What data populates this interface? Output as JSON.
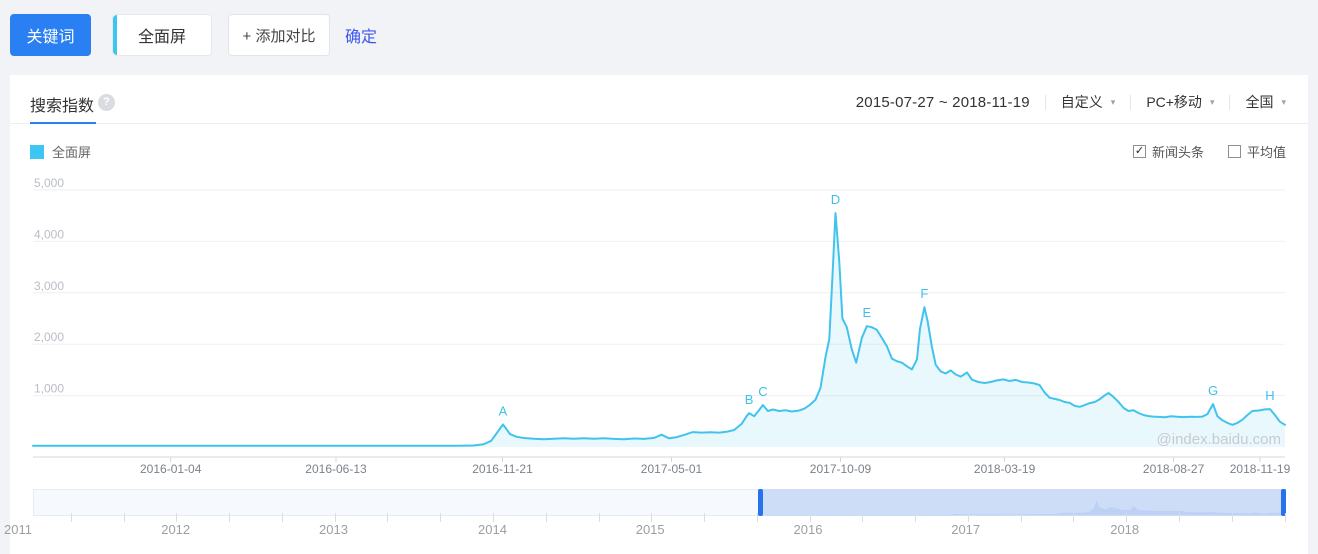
{
  "topbar": {
    "keyword_button": "关键词",
    "keyword_card": "全面屏",
    "add_compare_button": "+ 添加对比",
    "confirm_link": "确定"
  },
  "panel": {
    "tab": "搜索指数",
    "help_icon": "question-mark",
    "date_range": "2015-07-27 ~ 2018-11-19",
    "filters": [
      {
        "label": "自定义",
        "name": "date-mode-dropdown"
      },
      {
        "label": "PC+移动",
        "name": "platform-dropdown"
      },
      {
        "label": "全国",
        "name": "region-dropdown"
      }
    ],
    "legend": {
      "series_label": "全面屏",
      "swatch_color": "#3ec6f2"
    },
    "toggles": [
      {
        "label": "新闻头条",
        "checked": true
      },
      {
        "label": "平均值",
        "checked": false
      }
    ]
  },
  "chart_data": {
    "type": "area",
    "title": "搜索指数",
    "series_name": "全面屏",
    "line_color": "#41c3ee",
    "fill_color": "rgba(62,198,242,0.12)",
    "ylim": [
      0,
      5000
    ],
    "y_ticks": [
      1000,
      2000,
      3000,
      4000,
      5000
    ],
    "x_ticks": [
      {
        "label": "2016-01-04",
        "f": 0.11
      },
      {
        "label": "2016-06-13",
        "f": 0.242
      },
      {
        "label": "2016-11-21",
        "f": 0.375
      },
      {
        "label": "2017-05-01",
        "f": 0.51
      },
      {
        "label": "2017-10-09",
        "f": 0.645
      },
      {
        "label": "2018-03-19",
        "f": 0.776
      },
      {
        "label": "2018-08-27",
        "f": 0.911
      },
      {
        "label": "2018-11-19",
        "f": 0.98
      }
    ],
    "annotations": [
      {
        "label": "A",
        "f": 0.3754,
        "value": 440
      },
      {
        "label": "B",
        "f": 0.572,
        "value": 660
      },
      {
        "label": "C",
        "f": 0.583,
        "value": 815
      },
      {
        "label": "D",
        "f": 0.641,
        "value": 4550
      },
      {
        "label": "E",
        "f": 0.666,
        "value": 2350
      },
      {
        "label": "F",
        "f": 0.712,
        "value": 2720
      },
      {
        "label": "G",
        "f": 0.9425,
        "value": 835
      },
      {
        "label": "H",
        "f": 0.988,
        "value": 738
      }
    ],
    "watermark": "@index.baidu.com",
    "points": [
      [
        0.0,
        25
      ],
      [
        0.02,
        25
      ],
      [
        0.04,
        25
      ],
      [
        0.06,
        25
      ],
      [
        0.08,
        25
      ],
      [
        0.1,
        25
      ],
      [
        0.12,
        25
      ],
      [
        0.14,
        25
      ],
      [
        0.16,
        25
      ],
      [
        0.18,
        25
      ],
      [
        0.2,
        25
      ],
      [
        0.22,
        25
      ],
      [
        0.24,
        25
      ],
      [
        0.26,
        25
      ],
      [
        0.28,
        25
      ],
      [
        0.3,
        25
      ],
      [
        0.32,
        25
      ],
      [
        0.34,
        25
      ],
      [
        0.352,
        30
      ],
      [
        0.36,
        55
      ],
      [
        0.366,
        120
      ],
      [
        0.3754,
        440
      ],
      [
        0.381,
        250
      ],
      [
        0.386,
        200
      ],
      [
        0.392,
        175
      ],
      [
        0.4,
        160
      ],
      [
        0.408,
        150
      ],
      [
        0.416,
        162
      ],
      [
        0.424,
        172
      ],
      [
        0.432,
        160
      ],
      [
        0.44,
        172
      ],
      [
        0.448,
        162
      ],
      [
        0.456,
        172
      ],
      [
        0.464,
        158
      ],
      [
        0.472,
        150
      ],
      [
        0.48,
        165
      ],
      [
        0.488,
        158
      ],
      [
        0.496,
        178
      ],
      [
        0.502,
        240
      ],
      [
        0.508,
        170
      ],
      [
        0.514,
        190
      ],
      [
        0.52,
        235
      ],
      [
        0.527,
        290
      ],
      [
        0.534,
        280
      ],
      [
        0.541,
        288
      ],
      [
        0.548,
        280
      ],
      [
        0.554,
        295
      ],
      [
        0.56,
        330
      ],
      [
        0.566,
        450
      ],
      [
        0.57,
        600
      ],
      [
        0.572,
        660
      ],
      [
        0.576,
        600
      ],
      [
        0.58,
        720
      ],
      [
        0.583,
        815
      ],
      [
        0.587,
        700
      ],
      [
        0.591,
        730
      ],
      [
        0.596,
        700
      ],
      [
        0.601,
        715
      ],
      [
        0.606,
        690
      ],
      [
        0.611,
        705
      ],
      [
        0.616,
        745
      ],
      [
        0.62,
        810
      ],
      [
        0.625,
        920
      ],
      [
        0.629,
        1150
      ],
      [
        0.633,
        1750
      ],
      [
        0.636,
        2100
      ],
      [
        0.6385,
        3300
      ],
      [
        0.641,
        4550
      ],
      [
        0.644,
        3600
      ],
      [
        0.6465,
        2500
      ],
      [
        0.65,
        2330
      ],
      [
        0.654,
        1900
      ],
      [
        0.6575,
        1640
      ],
      [
        0.662,
        2120
      ],
      [
        0.666,
        2350
      ],
      [
        0.67,
        2330
      ],
      [
        0.674,
        2280
      ],
      [
        0.678,
        2120
      ],
      [
        0.682,
        1960
      ],
      [
        0.686,
        1720
      ],
      [
        0.69,
        1670
      ],
      [
        0.694,
        1640
      ],
      [
        0.698,
        1570
      ],
      [
        0.702,
        1510
      ],
      [
        0.706,
        1700
      ],
      [
        0.7085,
        2300
      ],
      [
        0.712,
        2720
      ],
      [
        0.7145,
        2450
      ],
      [
        0.718,
        1950
      ],
      [
        0.721,
        1600
      ],
      [
        0.725,
        1470
      ],
      [
        0.729,
        1430
      ],
      [
        0.733,
        1490
      ],
      [
        0.737,
        1410
      ],
      [
        0.741,
        1370
      ],
      [
        0.746,
        1450
      ],
      [
        0.75,
        1310
      ],
      [
        0.755,
        1265
      ],
      [
        0.76,
        1245
      ],
      [
        0.765,
        1265
      ],
      [
        0.77,
        1295
      ],
      [
        0.775,
        1315
      ],
      [
        0.78,
        1285
      ],
      [
        0.785,
        1305
      ],
      [
        0.79,
        1265
      ],
      [
        0.795,
        1255
      ],
      [
        0.8,
        1235
      ],
      [
        0.804,
        1205
      ],
      [
        0.808,
        1060
      ],
      [
        0.812,
        960
      ],
      [
        0.816,
        935
      ],
      [
        0.82,
        915
      ],
      [
        0.824,
        875
      ],
      [
        0.828,
        858
      ],
      [
        0.832,
        800
      ],
      [
        0.836,
        782
      ],
      [
        0.84,
        815
      ],
      [
        0.844,
        855
      ],
      [
        0.848,
        875
      ],
      [
        0.852,
        930
      ],
      [
        0.856,
        1005
      ],
      [
        0.859,
        1050
      ],
      [
        0.863,
        975
      ],
      [
        0.867,
        878
      ],
      [
        0.871,
        760
      ],
      [
        0.875,
        700
      ],
      [
        0.879,
        715
      ],
      [
        0.883,
        662
      ],
      [
        0.887,
        622
      ],
      [
        0.891,
        602
      ],
      [
        0.895,
        592
      ],
      [
        0.899,
        585
      ],
      [
        0.904,
        580
      ],
      [
        0.909,
        598
      ],
      [
        0.914,
        590
      ],
      [
        0.919,
        582
      ],
      [
        0.924,
        590
      ],
      [
        0.929,
        585
      ],
      [
        0.934,
        592
      ],
      [
        0.938,
        640
      ],
      [
        0.9425,
        835
      ],
      [
        0.946,
        600
      ],
      [
        0.95,
        520
      ],
      [
        0.954,
        468
      ],
      [
        0.958,
        432
      ],
      [
        0.962,
        468
      ],
      [
        0.966,
        532
      ],
      [
        0.97,
        622
      ],
      [
        0.974,
        700
      ],
      [
        0.979,
        710
      ],
      [
        0.984,
        732
      ],
      [
        0.988,
        738
      ],
      [
        0.992,
        620
      ],
      [
        0.996,
        490
      ],
      [
        1.0,
        432
      ]
    ]
  },
  "timeline": {
    "years": [
      {
        "label": "2011",
        "f": -0.012
      },
      {
        "label": "2012",
        "f": 0.114
      },
      {
        "label": "2013",
        "f": 0.24
      },
      {
        "label": "2014",
        "f": 0.367
      },
      {
        "label": "2015",
        "f": 0.493
      },
      {
        "label": "2016",
        "f": 0.619
      },
      {
        "label": "2017",
        "f": 0.745
      },
      {
        "label": "2018",
        "f": 0.872
      }
    ],
    "selection": {
      "start_f": 0.578,
      "end_f": 1.0
    }
  }
}
